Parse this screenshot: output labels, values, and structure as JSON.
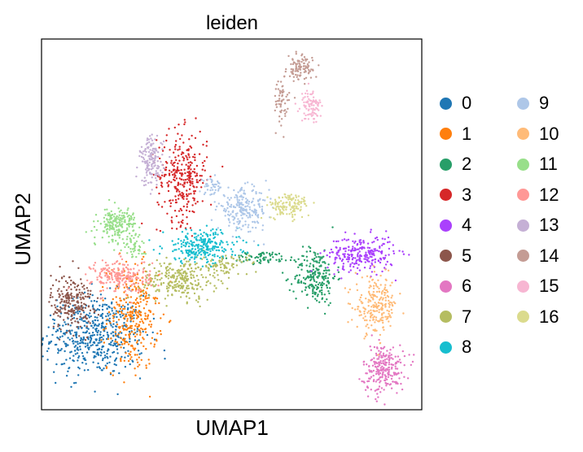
{
  "chart_data": {
    "type": "scatter",
    "title": "leiden",
    "xlabel": "UMAP1",
    "ylabel": "UMAP2",
    "xlim": [
      0,
      100
    ],
    "ylim": [
      0,
      100
    ],
    "grid": false,
    "ticks": false,
    "legend_placement": "right, 2 columns",
    "series": [
      {
        "name": "0",
        "color": "#1f77b4",
        "clusters": [
          {
            "cx": 14,
            "cy": 20,
            "rx": 12,
            "ry": 10,
            "n": 520
          }
        ]
      },
      {
        "name": "1",
        "color": "#ff7f0e",
        "clusters": [
          {
            "cx": 24,
            "cy": 25,
            "rx": 6,
            "ry": 13,
            "n": 320
          }
        ]
      },
      {
        "name": "2",
        "color": "#279e68",
        "clusters": [
          {
            "cx": 72,
            "cy": 36,
            "rx": 5,
            "ry": 7,
            "n": 220
          },
          {
            "cx": 58,
            "cy": 41,
            "rx": 7,
            "ry": 1.5,
            "n": 70
          }
        ]
      },
      {
        "name": "3",
        "color": "#d62728",
        "clusters": [
          {
            "cx": 37,
            "cy": 63,
            "rx": 6,
            "ry": 11,
            "n": 300
          }
        ]
      },
      {
        "name": "4",
        "color": "#aa40fc",
        "clusters": [
          {
            "cx": 84,
            "cy": 42,
            "rx": 8,
            "ry": 4.5,
            "n": 250
          }
        ]
      },
      {
        "name": "5",
        "color": "#8c564b",
        "clusters": [
          {
            "cx": 8,
            "cy": 29,
            "rx": 5,
            "ry": 7,
            "n": 220
          }
        ]
      },
      {
        "name": "6",
        "color": "#e377c2",
        "clusters": [
          {
            "cx": 90,
            "cy": 11,
            "rx": 5,
            "ry": 6,
            "n": 240
          }
        ]
      },
      {
        "name": "7",
        "color": "#b5bd61",
        "clusters": [
          {
            "cx": 36,
            "cy": 35,
            "rx": 9,
            "ry": 5,
            "n": 260
          },
          {
            "cx": 48,
            "cy": 39,
            "rx": 6,
            "ry": 2.5,
            "n": 80
          }
        ]
      },
      {
        "name": "8",
        "color": "#17becf",
        "clusters": [
          {
            "cx": 42,
            "cy": 44,
            "rx": 9,
            "ry": 4,
            "n": 260
          }
        ]
      },
      {
        "name": "9",
        "color": "#aec7e8",
        "clusters": [
          {
            "cx": 53,
            "cy": 54,
            "rx": 6,
            "ry": 5,
            "n": 220
          },
          {
            "cx": 45,
            "cy": 60,
            "rx": 3,
            "ry": 2,
            "n": 40
          }
        ]
      },
      {
        "name": "10",
        "color": "#ffbb78",
        "clusters": [
          {
            "cx": 88,
            "cy": 28,
            "rx": 5,
            "ry": 7,
            "n": 220
          }
        ]
      },
      {
        "name": "11",
        "color": "#98df8a",
        "clusters": [
          {
            "cx": 20,
            "cy": 50,
            "rx": 4.5,
            "ry": 4,
            "n": 200
          },
          {
            "cx": 24,
            "cy": 44,
            "rx": 3,
            "ry": 3,
            "n": 40
          }
        ]
      },
      {
        "name": "12",
        "color": "#ff9896",
        "clusters": [
          {
            "cx": 21,
            "cy": 36,
            "rx": 7,
            "ry": 4,
            "n": 220
          }
        ]
      },
      {
        "name": "13",
        "color": "#c5b0d5",
        "clusters": [
          {
            "cx": 29,
            "cy": 67,
            "rx": 2.8,
            "ry": 6,
            "n": 160
          }
        ]
      },
      {
        "name": "14",
        "color": "#c49c94",
        "clusters": [
          {
            "cx": 68,
            "cy": 92,
            "rx": 3,
            "ry": 3,
            "n": 100
          },
          {
            "cx": 63,
            "cy": 83,
            "rx": 2,
            "ry": 6,
            "n": 60
          }
        ]
      },
      {
        "name": "15",
        "color": "#f7b6d2",
        "clusters": [
          {
            "cx": 71,
            "cy": 82,
            "rx": 2.5,
            "ry": 4,
            "n": 90
          }
        ]
      },
      {
        "name": "16",
        "color": "#dbdb8d",
        "clusters": [
          {
            "cx": 65,
            "cy": 55,
            "rx": 5,
            "ry": 3,
            "n": 130
          }
        ]
      }
    ]
  }
}
